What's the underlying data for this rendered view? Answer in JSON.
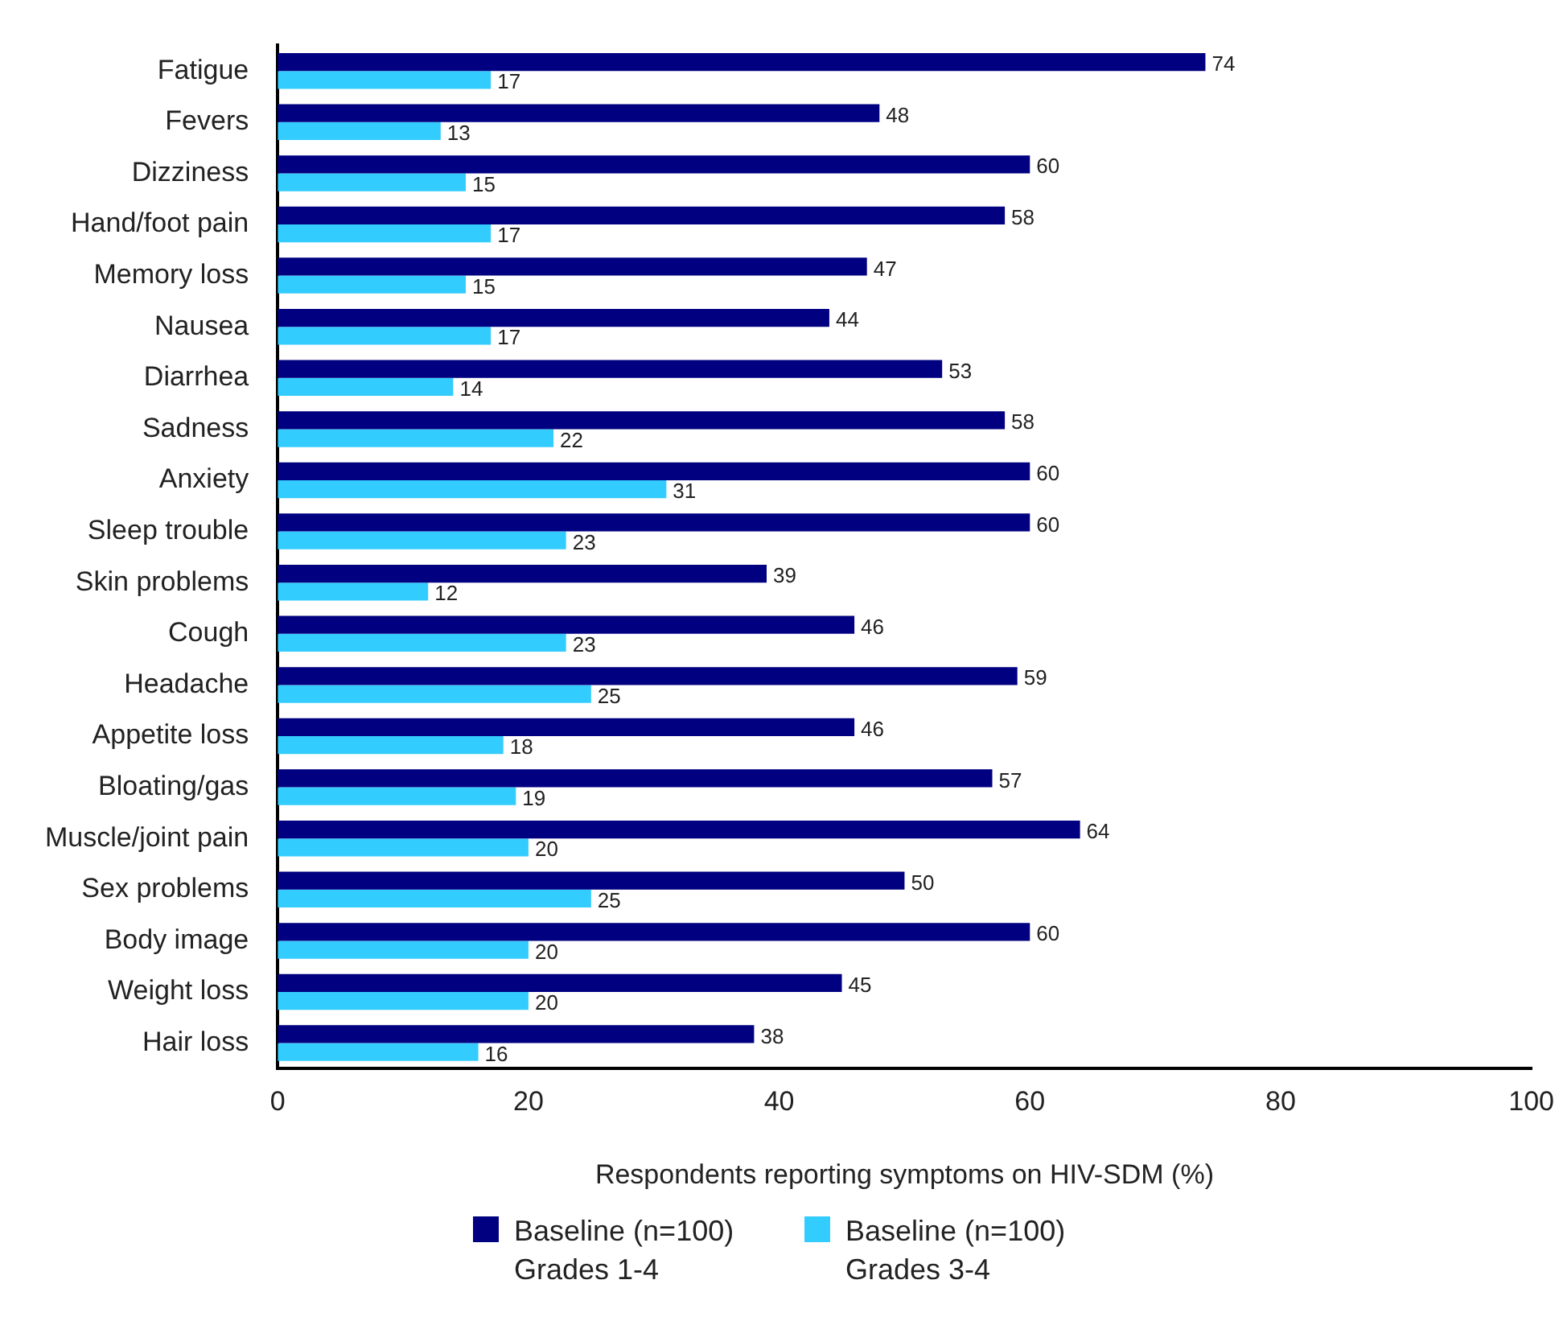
{
  "chart_data": {
    "type": "bar",
    "orientation": "horizontal",
    "xlabel": "Respondents reporting symptoms on HIV-SDM (%)",
    "categories": [
      "Fatigue",
      "Fevers",
      "Dizziness",
      "Hand/foot pain",
      "Memory loss",
      "Nausea",
      "Diarrhea",
      "Sadness",
      "Anxiety",
      "Sleep trouble",
      "Skin problems",
      "Cough",
      "Headache",
      "Appetite loss",
      "Bloating/gas",
      "Muscle/joint pain",
      "Sex problems",
      "Body image",
      "Weight loss",
      "Hair loss"
    ],
    "series": [
      {
        "name": "Baseline (n=100) Grades 1-4",
        "color": "#000080",
        "values": [
          74,
          48,
          60,
          58,
          47,
          44,
          53,
          58,
          60,
          60,
          39,
          46,
          59,
          46,
          57,
          64,
          50,
          60,
          45,
          38
        ]
      },
      {
        "name": "Baseline (n=100) Grades 3-4",
        "color": "#33ccff",
        "values": [
          17,
          13,
          15,
          17,
          15,
          17,
          14,
          22,
          31,
          23,
          12,
          23,
          25,
          18,
          19,
          20,
          25,
          20,
          20,
          16
        ]
      }
    ],
    "xlim": [
      0,
      100
    ],
    "xticks": [
      0,
      20,
      40,
      60,
      80,
      100
    ],
    "grid": false,
    "legend": "bottom",
    "data_labels": true
  }
}
